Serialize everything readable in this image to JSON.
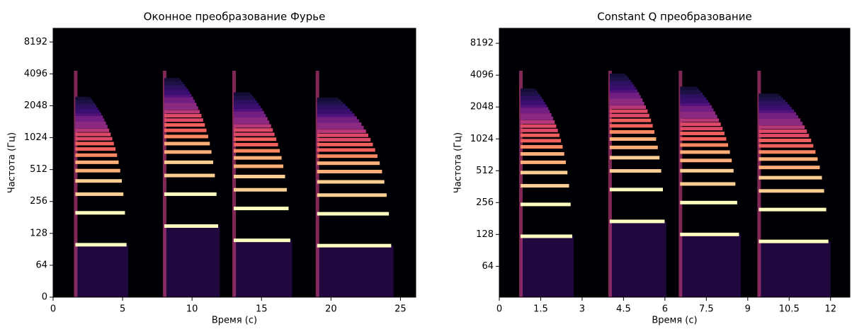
{
  "chart_data": [
    {
      "type": "spectrogram",
      "title": "Оконное преобразование Фурье",
      "xlabel": "Время (с)",
      "ylabel": "Частота (Гц)",
      "xlim": [
        0,
        26.1
      ],
      "xticks": [
        0,
        5,
        10,
        15,
        20,
        25
      ],
      "yscale": "symlog",
      "linthresh": 64,
      "ylim": [
        0,
        11025
      ],
      "yticks": [
        0,
        64,
        128,
        256,
        512,
        1024,
        2048,
        4096,
        8192
      ],
      "notes": [
        {
          "start": 1.6,
          "end": 5.4,
          "f0": 100
        },
        {
          "start": 8.0,
          "end": 12.0,
          "f0": 150
        },
        {
          "start": 13.0,
          "end": 17.2,
          "f0": 110
        },
        {
          "start": 19.0,
          "end": 24.5,
          "f0": 98
        }
      ]
    },
    {
      "type": "spectrogram",
      "title": "Constant Q преобразование",
      "xlabel": "Время (с)",
      "ylabel": "Частота (Гц)",
      "xlim": [
        0,
        12.7
      ],
      "xticks": [
        0,
        1.5,
        3,
        4.5,
        6,
        7.5,
        9,
        10.5,
        12
      ],
      "yscale": "log",
      "ylim": [
        32.7,
        11350
      ],
      "yticks": [
        64,
        128,
        256,
        512,
        1024,
        2048,
        4096,
        8192
      ],
      "notes": [
        {
          "start": 0.77,
          "end": 2.7,
          "f0": 123
        },
        {
          "start": 4.0,
          "end": 6.05,
          "f0": 170
        },
        {
          "start": 6.55,
          "end": 8.75,
          "f0": 128
        },
        {
          "start": 9.4,
          "end": 12.0,
          "f0": 110
        }
      ]
    }
  ]
}
